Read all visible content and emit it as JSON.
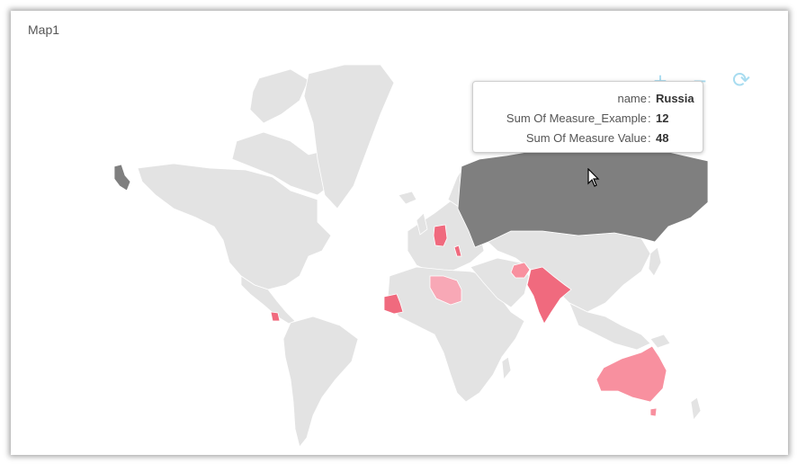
{
  "widget": {
    "title": "Map1"
  },
  "map": {
    "base_color": "#e3e3e3",
    "highlight_color": "#7f7f7f",
    "regions": [
      {
        "name": "Russia",
        "color": "#7f7f7f",
        "state": "hovered"
      },
      {
        "name": "Australia",
        "color": "#f8909f"
      },
      {
        "name": "India",
        "color": "#f06a7e"
      },
      {
        "name": "Germany",
        "color": "#f06a7e"
      },
      {
        "name": "Mauritania",
        "color": "#f06a7e"
      },
      {
        "name": "Libya",
        "color": "#f8a8b6"
      },
      {
        "name": "Afghanistan",
        "color": "#f8909f"
      },
      {
        "name": "Nicaragua",
        "color": "#f06a7e"
      },
      {
        "name": "Alaska",
        "color": "#7f7f7f"
      }
    ]
  },
  "toolbar": {
    "zoom_in": "+",
    "zoom_out": "−",
    "reset": "⟳",
    "icon_color": "#a8dcf0"
  },
  "tooltip": {
    "rows": [
      {
        "label": "name",
        "value": "Russia"
      },
      {
        "label": "Sum Of Measure_Example",
        "value": "12"
      },
      {
        "label": "Sum Of Measure Value",
        "value": "48"
      }
    ]
  }
}
